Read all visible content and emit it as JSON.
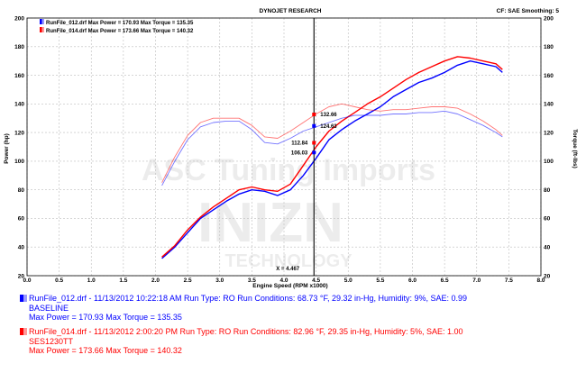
{
  "header": {
    "title": "DYNOJET RESEARCH",
    "settings": "CF: SAE  Smoothing: 5",
    "legend": [
      {
        "text": "RunFile_012.drf Max Power = 170.93  Max Torque = 135.35",
        "color": "#0000ff"
      },
      {
        "text": "RunFile_014.drf Max Power = 173.66  Max Torque = 140.32",
        "color": "#ff0000"
      }
    ]
  },
  "watermark": {
    "line1": "ASC Tuning Imports",
    "line2": "INIZN",
    "line3": "TECHNOLOGY"
  },
  "runs": [
    {
      "color": "#0000ff",
      "line1": "RunFile_012.drf - 11/13/2012 10:22:18 AM  Run Type: RO  Run Conditions: 68.73 °F, 29.32 in-Hg,  Humidity:  9%, SAE: 0.99",
      "line2": "BASELINE",
      "line3": "Max Power = 170.93  Max Torque = 135.35"
    },
    {
      "color": "#ff0000",
      "line1": "RunFile_014.drf - 11/13/2012 2:00:20 PM  Run Type: RO  Run Conditions: 82.96 °F, 29.35 in-Hg,  Humidity:  5%, SAE: 1.00",
      "line2": "SES1230TT",
      "line3": "Max Power = 173.66  Max Torque = 140.32"
    }
  ],
  "chart_data": {
    "type": "line",
    "title": "DYNOJET RESEARCH",
    "xlabel": "Engine Speed (RPM x1000)",
    "ylabel": "Power (hp)",
    "ylabel_right": "Torque (ft-lbs)",
    "xlim": [
      0.0,
      8.0
    ],
    "ylim": [
      20,
      200
    ],
    "x_ticks": [
      "0.0",
      "0.5",
      "1.0",
      "1.5",
      "2.0",
      "2.5",
      "3.0",
      "3.5",
      "4.0",
      "4.5",
      "5.0",
      "5.5",
      "6.0",
      "6.5",
      "7.0",
      "7.5",
      "8.0"
    ],
    "y_ticks": [
      "20",
      "40",
      "60",
      "80",
      "100",
      "120",
      "140",
      "160",
      "180",
      "200"
    ],
    "grid": true,
    "cursor": {
      "x": 4.467,
      "label": "X = 4.467"
    },
    "markers": [
      {
        "label": "132.66",
        "x": 4.467,
        "y": 132.66,
        "color": "#ff0000"
      },
      {
        "label": "124.63",
        "x": 4.467,
        "y": 124.63,
        "color": "#0000ff"
      },
      {
        "label": "112.84",
        "x": 4.467,
        "y": 112.84,
        "color": "#ff0000"
      },
      {
        "label": "106.03",
        "x": 4.467,
        "y": 106.03,
        "color": "#0000ff"
      }
    ],
    "series": [
      {
        "name": "RunFile_012.drf Power",
        "color": "#0000ff",
        "x": [
          2.1,
          2.3,
          2.5,
          2.7,
          2.9,
          3.1,
          3.3,
          3.5,
          3.7,
          3.9,
          4.1,
          4.3,
          4.5,
          4.7,
          4.9,
          5.1,
          5.3,
          5.5,
          5.7,
          5.9,
          6.1,
          6.3,
          6.5,
          6.7,
          6.9,
          7.1,
          7.3,
          7.4
        ],
        "y": [
          32,
          40,
          50,
          60,
          66,
          72,
          77,
          80,
          79,
          76,
          80,
          90,
          102,
          115,
          122,
          128,
          133,
          138,
          145,
          150,
          155,
          158,
          162,
          167,
          170,
          168,
          166,
          162
        ]
      },
      {
        "name": "RunFile_014.drf Power",
        "color": "#ff0000",
        "x": [
          2.1,
          2.3,
          2.5,
          2.7,
          2.9,
          3.1,
          3.3,
          3.5,
          3.7,
          3.9,
          4.1,
          4.3,
          4.5,
          4.7,
          4.9,
          5.1,
          5.3,
          5.5,
          5.7,
          5.9,
          6.1,
          6.3,
          6.5,
          6.7,
          6.9,
          7.1,
          7.3,
          7.4
        ],
        "y": [
          33,
          41,
          52,
          61,
          68,
          74,
          80,
          82,
          80,
          79,
          84,
          97,
          110,
          121,
          128,
          134,
          140,
          145,
          151,
          157,
          162,
          166,
          170,
          173,
          172,
          170,
          168,
          164
        ]
      },
      {
        "name": "RunFile_012.drf Torque",
        "color": "#0000ff",
        "x": [
          2.1,
          2.3,
          2.5,
          2.7,
          2.9,
          3.1,
          3.3,
          3.5,
          3.7,
          3.9,
          4.1,
          4.3,
          4.5,
          4.7,
          4.9,
          5.1,
          5.3,
          5.5,
          5.7,
          5.9,
          6.1,
          6.3,
          6.5,
          6.7,
          6.9,
          7.1,
          7.3,
          7.4
        ],
        "y": [
          83,
          100,
          115,
          124,
          127,
          128,
          128,
          122,
          113,
          112,
          116,
          121,
          124,
          127,
          130,
          132,
          132,
          132,
          133,
          133,
          134,
          134,
          135,
          133,
          129,
          125,
          120,
          117
        ]
      },
      {
        "name": "RunFile_014.drf Torque",
        "color": "#ff0000",
        "x": [
          2.1,
          2.3,
          2.5,
          2.7,
          2.9,
          3.1,
          3.3,
          3.5,
          3.7,
          3.9,
          4.1,
          4.3,
          4.5,
          4.7,
          4.9,
          5.1,
          5.3,
          5.5,
          5.7,
          5.9,
          6.1,
          6.3,
          6.5,
          6.7,
          6.9,
          7.1,
          7.3,
          7.4
        ],
        "y": [
          85,
          103,
          118,
          127,
          130,
          130,
          130,
          125,
          117,
          116,
          121,
          127,
          133,
          138,
          140,
          138,
          136,
          135,
          136,
          136,
          137,
          138,
          138,
          137,
          133,
          128,
          122,
          118
        ]
      }
    ]
  }
}
